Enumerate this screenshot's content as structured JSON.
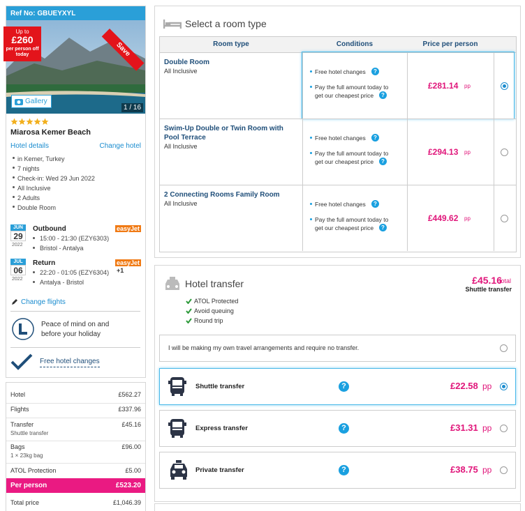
{
  "booking": {
    "ref": "Ref No: GBUEYXYL",
    "deal": {
      "up_to": "Up to",
      "amount": "£260",
      "note": "per person off today"
    },
    "ribbon": "Save",
    "gallery": "Gallery",
    "photo_count": "1 / 16",
    "stars": 5,
    "hotel_name": "Miarosa Kemer Beach",
    "hotel_details": "Hotel details",
    "change_hotel": "Change hotel",
    "facts": [
      "in Kemer, Turkey",
      "7 nights",
      "Check-in: Wed 29 Jun 2022",
      "All Inclusive",
      "2 Adults",
      "Double Room"
    ],
    "flights": [
      {
        "month": "JUN",
        "day": "29",
        "year": "2022",
        "label": "Outbound",
        "airline": "easyJet",
        "times": "15:00 - 21:30 (EZY6303)",
        "route": "Bristol - Antalya"
      },
      {
        "month": "JUL",
        "day": "06",
        "year": "2022",
        "label": "Return",
        "airline": "easyJet",
        "times": "22:20 - 01:05 (EZY6304)",
        "plus": "+1",
        "route": "Antalya - Bristol"
      }
    ],
    "change_flights": "Change flights",
    "atol_text": "Peace of mind on and before your holiday",
    "free_changes": "Free hotel changes"
  },
  "summary": {
    "rows": [
      {
        "label": "Hotel",
        "value": "£562.27"
      },
      {
        "label": "Flights",
        "value": "£337.96"
      },
      {
        "label": "Transfer",
        "sublabel": "Shuttle transfer",
        "value": "£45.16"
      },
      {
        "label": "Bags",
        "sublabel": "1 × 23kg bag",
        "value": "£96.00"
      },
      {
        "label": "ATOL Protection",
        "value": "£5.00"
      }
    ],
    "per_person": {
      "label": "Per person",
      "value": "£523.20"
    },
    "total": {
      "label": "Total price",
      "value": "£1,046.39"
    }
  },
  "room_section": {
    "title": "Select a room type",
    "headers": [
      "Room type",
      "Conditions",
      "Price per person"
    ],
    "help_icon": "?",
    "rows": [
      {
        "name": "Double Room",
        "board": "All Inclusive",
        "conditions": [
          "Free hotel changes",
          "Pay the full amount today to get our cheapest price"
        ],
        "price": "£281.14",
        "unit": "pp",
        "selected": true
      },
      {
        "name": "Swim-Up Double or Twin Room with Pool Terrace",
        "board": "All Inclusive",
        "conditions": [
          "Free hotel changes",
          "Pay the full amount today to get our cheapest price"
        ],
        "price": "£294.13",
        "unit": "pp",
        "selected": false
      },
      {
        "name": "2 Connecting Rooms Family Room",
        "board": "All Inclusive",
        "conditions": [
          "Free hotel changes",
          "Pay the full amount today to get our cheapest price"
        ],
        "price": "£449.62",
        "unit": "pp",
        "selected": false
      }
    ]
  },
  "transfer_section": {
    "title": "Hotel transfer",
    "total_price": "£45.16",
    "total_label": "total",
    "selected_name": "Shuttle transfer",
    "features": [
      "ATOL Protected",
      "Avoid queuing",
      "Round trip"
    ],
    "own_arrangement": "I will be making my own travel arrangements and require no transfer.",
    "help_icon": "?",
    "options": [
      {
        "name": "Shuttle transfer",
        "price": "£22.58",
        "unit": "pp",
        "selected": true
      },
      {
        "name": "Express transfer",
        "price": "£31.31",
        "unit": "pp",
        "selected": false
      },
      {
        "name": "Private transfer",
        "price": "£38.75",
        "unit": "pp",
        "selected": false
      }
    ]
  }
}
